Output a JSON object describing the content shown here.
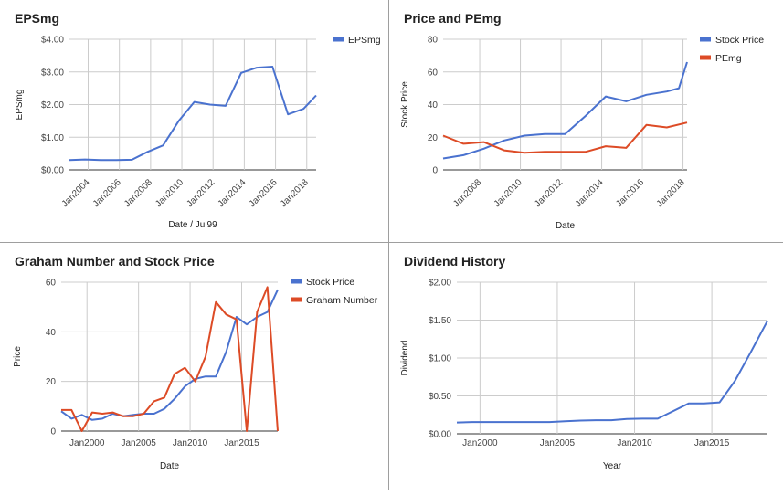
{
  "chart_data": [
    {
      "type": "line",
      "title": "EPSmg",
      "xlabel": "Date / Jul99",
      "ylabel": "EPSmg",
      "ylim": [
        0,
        4
      ],
      "yticks": [
        "$0.00",
        "$1.00",
        "$2.00",
        "$3.00",
        "$4.00"
      ],
      "xlim": [
        2002.8,
        2018.6
      ],
      "xticks": [
        "Jan2004",
        "Jan2006",
        "Jan2008",
        "Jan2010",
        "Jan2012",
        "Jan2014",
        "Jan2016",
        "Jan2018"
      ],
      "legend": "top-right",
      "series": [
        {
          "name": "EPSmg",
          "color": "#4a72cf",
          "x": [
            2002.8,
            2003.8,
            2004.8,
            2005.8,
            2006.8,
            2007.8,
            2008.8,
            2009.8,
            2010.8,
            2011.8,
            2012.8,
            2013.8,
            2014.8,
            2015.8,
            2016.8,
            2017.8,
            2018.6
          ],
          "y": [
            0.3,
            0.32,
            0.3,
            0.3,
            0.31,
            0.55,
            0.75,
            1.5,
            2.08,
            2.0,
            1.96,
            2.97,
            3.13,
            3.16,
            1.7,
            1.87,
            2.28
          ]
        }
      ]
    },
    {
      "type": "line",
      "title": "Price and PEmg",
      "xlabel": "Date",
      "ylabel": "Stock Price",
      "ylim": [
        0,
        80
      ],
      "yticks": [
        "0",
        "20",
        "40",
        "60",
        "80"
      ],
      "xlim": [
        2006.2,
        2018.2
      ],
      "xticks": [
        "Jan2008",
        "Jan2010",
        "Jan2012",
        "Jan2014",
        "Jan2016",
        "Jan2018"
      ],
      "legend": "top-right",
      "series": [
        {
          "name": "Stock Price",
          "color": "#4a72cf",
          "x": [
            2006.2,
            2007.2,
            2008.2,
            2009.2,
            2010.2,
            2011.2,
            2012.2,
            2013.2,
            2014.2,
            2015.2,
            2016.2,
            2017.2,
            2017.8,
            2018.2
          ],
          "y": [
            7,
            9,
            13,
            18,
            21,
            22,
            22,
            33,
            45,
            42,
            46,
            48,
            50,
            66
          ]
        },
        {
          "name": "PEmg",
          "color": "#dd4b26",
          "x": [
            2006.2,
            2007.2,
            2008.2,
            2009.2,
            2010.2,
            2011.2,
            2012.2,
            2013.2,
            2014.2,
            2015.2,
            2016.2,
            2017.2,
            2018.2
          ],
          "y": [
            21,
            16,
            17,
            12,
            10.5,
            11,
            11,
            11,
            14.5,
            13.5,
            27.5,
            26,
            29
          ]
        }
      ]
    },
    {
      "type": "line",
      "title": "Graham Number and Stock Price",
      "xlabel": "Date",
      "ylabel": "Price",
      "ylim": [
        0,
        60
      ],
      "yticks": [
        "0",
        "20",
        "40",
        "60"
      ],
      "xlim": [
        1997.5,
        2018.5
      ],
      "xticks": [
        "Jan2000",
        "Jan2005",
        "Jan2010",
        "Jan2015"
      ],
      "legend": "top-right",
      "series": [
        {
          "name": "Stock Price",
          "color": "#4a72cf",
          "x": [
            1997.5,
            1998.5,
            1999.5,
            2000.5,
            2001.5,
            2002.5,
            2003.5,
            2004.5,
            2005.5,
            2006.5,
            2007.5,
            2008.5,
            2009.5,
            2010.5,
            2011.5,
            2012.5,
            2013.5,
            2014.5,
            2015.5,
            2016.5,
            2017.5,
            2018.5
          ],
          "y": [
            8,
            5,
            6.5,
            4.5,
            5,
            7,
            6,
            6.5,
            7,
            7,
            9,
            13,
            18,
            21,
            22,
            22,
            32,
            46,
            43,
            46,
            48,
            57
          ]
        },
        {
          "name": "Graham Number",
          "color": "#dd4b26",
          "x": [
            1997.5,
            1998.5,
            1999.5,
            2000.5,
            2001.5,
            2002.5,
            2003.5,
            2004.5,
            2005.5,
            2006.5,
            2007.5,
            2008.5,
            2009.5,
            2010.5,
            2011.5,
            2012.5,
            2013.5,
            2014.5,
            2015.5,
            2016.5,
            2017.5,
            2018.5
          ],
          "y": [
            8.5,
            8.5,
            0,
            7.5,
            7,
            7.5,
            6,
            6,
            7,
            12,
            13.5,
            23,
            25.5,
            20,
            30,
            52,
            47,
            45,
            0,
            48,
            58,
            0
          ]
        }
      ]
    },
    {
      "type": "line",
      "title": "Dividend History",
      "xlabel": "Year",
      "ylabel": "Dividend",
      "ylim": [
        0,
        2
      ],
      "yticks": [
        "$0.00",
        "$0.50",
        "$1.00",
        "$1.50",
        "$2.00"
      ],
      "xlim": [
        1998.5,
        2018.6
      ],
      "xticks": [
        "Jan2000",
        "Jan2005",
        "Jan2010",
        "Jan2015"
      ],
      "legend": "none",
      "series": [
        {
          "name": "",
          "color": "#4a72cf",
          "x": [
            1998.5,
            1999.5,
            2000.5,
            2001.5,
            2002.5,
            2003.5,
            2004.5,
            2005.5,
            2006.5,
            2007.5,
            2008.5,
            2009.5,
            2010.5,
            2011.5,
            2012.5,
            2013.5,
            2014.5,
            2015.5,
            2016.5,
            2017.5,
            2018.6
          ],
          "y": [
            0.15,
            0.155,
            0.155,
            0.155,
            0.155,
            0.155,
            0.155,
            0.165,
            0.175,
            0.18,
            0.18,
            0.195,
            0.2,
            0.2,
            0.3,
            0.4,
            0.4,
            0.415,
            0.7,
            1.07,
            1.49
          ]
        }
      ]
    }
  ]
}
